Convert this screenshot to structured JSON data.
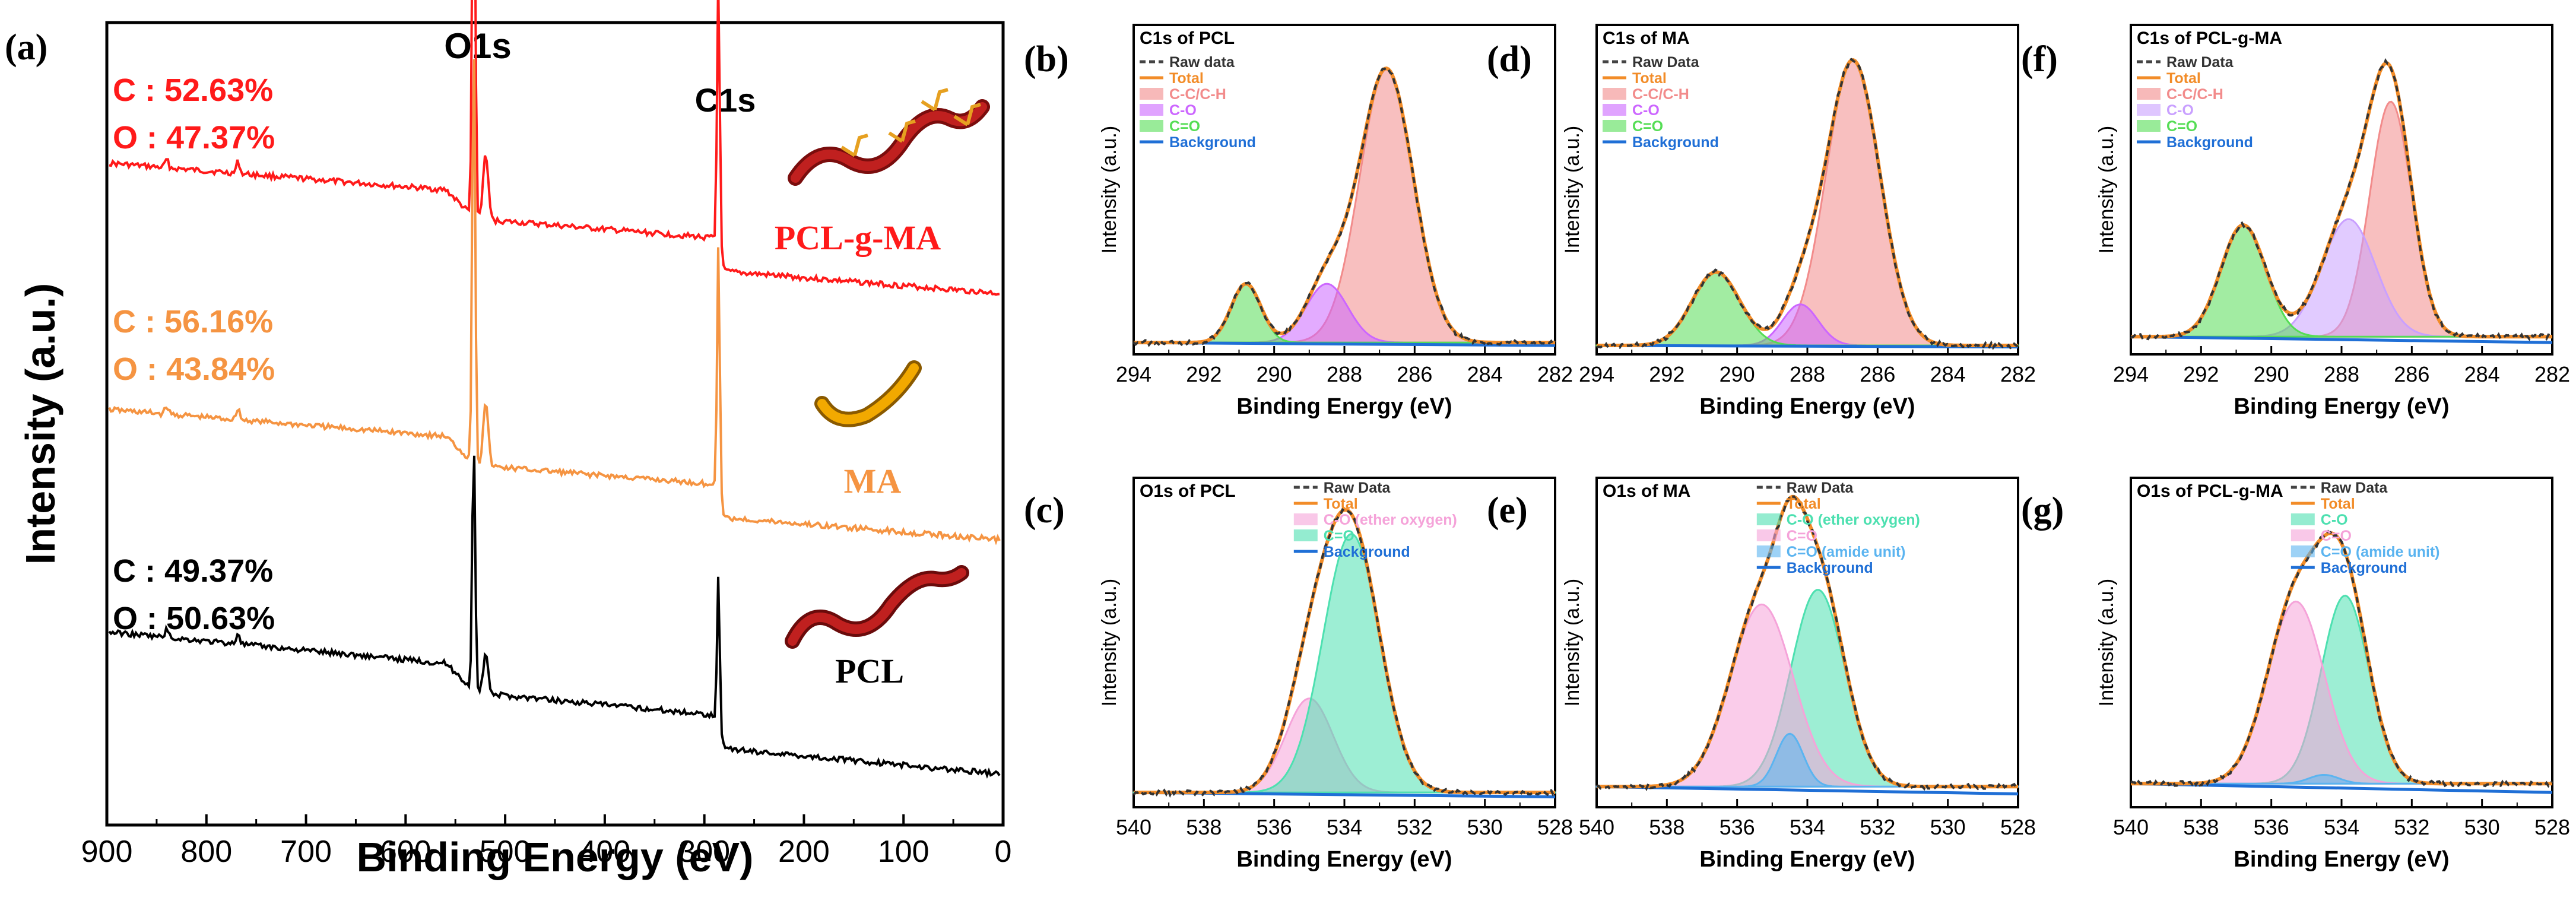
{
  "panel_a": {
    "label": "(a)",
    "xlabel": "Binding Energy (eV)",
    "ylabel": "Intensity (a.u.)",
    "xlim": [
      900,
      0
    ],
    "xticks": [
      "900",
      "800",
      "700",
      "600",
      "500",
      "400",
      "300",
      "200",
      "100",
      "0"
    ],
    "peak_o1s": "O1s",
    "peak_c1s": "C1s",
    "spectra": [
      {
        "name": "PCL-g-MA",
        "color": "#ff1a1a",
        "c": "C : 52.63%",
        "o": "O : 47.37%"
      },
      {
        "name": "MA",
        "color": "#f59442",
        "c": "C : 56.16%",
        "o": "O : 43.84%"
      },
      {
        "name": "PCL",
        "color": "#000000",
        "c": "C : 49.37%",
        "o": "O : 50.63%"
      }
    ]
  },
  "chart_data": [
    {
      "type": "line",
      "panel": "(a)",
      "title": "",
      "xlabel": "Binding Energy (eV)",
      "ylabel": "Intensity (a.u.)",
      "xlim": [
        900,
        0
      ],
      "series": [
        {
          "name": "PCL-g-MA",
          "peaks": {
            "O1s": 532,
            "C1s": 285
          }
        },
        {
          "name": "MA",
          "peaks": {
            "O1s": 532,
            "C1s": 285
          }
        },
        {
          "name": "PCL",
          "peaks": {
            "O1s": 532,
            "C1s": 285
          }
        }
      ]
    },
    {
      "type": "line",
      "panel": "(b)",
      "title": "C1s of PCL",
      "xlabel": "Binding Energy (eV)",
      "ylabel": "Intensity (a.u.)",
      "xlim": [
        294,
        282
      ],
      "series": [
        {
          "name": "C-C/C-H",
          "center": 286.8,
          "height": 0.93,
          "fwhm": 1.8
        },
        {
          "name": "C-O",
          "center": 288.5,
          "height": 0.2,
          "fwhm": 1.4
        },
        {
          "name": "C=O",
          "center": 290.8,
          "height": 0.2,
          "fwhm": 1.0
        }
      ]
    },
    {
      "type": "line",
      "panel": "(d)",
      "title": "C1s of MA",
      "xlabel": "Binding Energy (eV)",
      "ylabel": "Intensity (a.u.)",
      "xlim": [
        294,
        282
      ],
      "series": [
        {
          "name": "C-C/C-H",
          "center": 286.7,
          "height": 0.97,
          "fwhm": 1.8
        },
        {
          "name": "C-O",
          "center": 288.2,
          "height": 0.14,
          "fwhm": 1.2
        },
        {
          "name": "C=O",
          "center": 290.6,
          "height": 0.25,
          "fwhm": 1.6
        }
      ]
    },
    {
      "type": "line",
      "panel": "(f)",
      "title": "C1s of PCL-g-MA",
      "xlabel": "Binding Energy (eV)",
      "ylabel": "Intensity (a.u.)",
      "xlim": [
        294,
        282
      ],
      "series": [
        {
          "name": "C-C/C-H",
          "center": 286.6,
          "height": 0.8,
          "fwhm": 1.4
        },
        {
          "name": "C-O",
          "center": 287.8,
          "height": 0.4,
          "fwhm": 1.8
        },
        {
          "name": "C=O",
          "center": 290.8,
          "height": 0.38,
          "fwhm": 1.5
        }
      ]
    },
    {
      "type": "line",
      "panel": "(c)",
      "title": "O1s of PCL",
      "xlabel": "Binding Energy (eV)",
      "ylabel": "Intensity (a.u.)",
      "xlim": [
        540,
        528
      ],
      "series": [
        {
          "name": "C-O (ether oxygen)",
          "center": 535.0,
          "height": 0.32,
          "fwhm": 1.6
        },
        {
          "name": "C=O",
          "center": 533.8,
          "height": 0.88,
          "fwhm": 1.9
        }
      ]
    },
    {
      "type": "line",
      "panel": "(e)",
      "title": "O1s of MA",
      "xlabel": "Binding Energy (eV)",
      "ylabel": "Intensity (a.u.)",
      "xlim": [
        540,
        528
      ],
      "series": [
        {
          "name": "C-O (ether oxygen)",
          "center": 533.7,
          "height": 0.67,
          "fwhm": 1.8
        },
        {
          "name": "C=O",
          "center": 535.3,
          "height": 0.62,
          "fwhm": 2.1
        },
        {
          "name": "C=O (amide unit)",
          "center": 534.5,
          "height": 0.18,
          "fwhm": 0.9
        }
      ]
    },
    {
      "type": "line",
      "panel": "(g)",
      "title": "O1s of PCL-g-MA",
      "xlabel": "Binding Energy (eV)",
      "ylabel": "Intensity (a.u.)",
      "xlim": [
        540,
        528
      ],
      "series": [
        {
          "name": "C-O",
          "center": 533.9,
          "height": 0.64,
          "fwhm": 1.6
        },
        {
          "name": "C=O",
          "center": 535.3,
          "height": 0.62,
          "fwhm": 1.9
        },
        {
          "name": "C=O (amide unit)",
          "center": 534.5,
          "height": 0.03,
          "fwhm": 1.0
        }
      ]
    }
  ],
  "xps_panels": [
    {
      "label": "(b)",
      "title": "C1s of PCL",
      "xlim": [
        294,
        282
      ],
      "xticks": [
        "294",
        "292",
        "290",
        "288",
        "286",
        "284",
        "282"
      ],
      "xlabel": "Binding Energy (eV)",
      "ylabel": "Intensity (a.u.)",
      "legend": [
        {
          "text": "Raw data",
          "color": "#444444",
          "kind": "dash"
        },
        {
          "text": "Total",
          "color": "#f28c28",
          "kind": "line"
        },
        {
          "text": "C-C/C-H",
          "color": "#f28b8b",
          "kind": "fill"
        },
        {
          "text": "C-O",
          "color": "#cc66ff",
          "kind": "fill"
        },
        {
          "text": "C=O",
          "color": "#55dd55",
          "kind": "fill"
        },
        {
          "text": "Background",
          "color": "#1f6fd6",
          "kind": "line"
        }
      ]
    },
    {
      "label": "(d)",
      "title": "C1s of MA",
      "xlim": [
        294,
        282
      ],
      "xticks": [
        "294",
        "292",
        "290",
        "288",
        "286",
        "284",
        "282"
      ],
      "xlabel": "Binding Energy (eV)",
      "ylabel": "Intensity (a.u.)",
      "legend": [
        {
          "text": "Raw Data",
          "color": "#444444",
          "kind": "dash"
        },
        {
          "text": "Total",
          "color": "#f28c28",
          "kind": "line"
        },
        {
          "text": "C-C/C-H",
          "color": "#f28b8b",
          "kind": "fill"
        },
        {
          "text": "C-O",
          "color": "#cc66ff",
          "kind": "fill"
        },
        {
          "text": "C=O",
          "color": "#55dd55",
          "kind": "fill"
        },
        {
          "text": "Background",
          "color": "#1f6fd6",
          "kind": "line"
        }
      ]
    },
    {
      "label": "(f)",
      "title": "C1s of PCL-g-MA",
      "xlim": [
        294,
        282
      ],
      "xticks": [
        "294",
        "292",
        "290",
        "288",
        "286",
        "284",
        "282"
      ],
      "xlabel": "Binding Energy (eV)",
      "ylabel": "Intensity (a.u.)",
      "legend": [
        {
          "text": "Raw Data",
          "color": "#444444",
          "kind": "dash"
        },
        {
          "text": "Total",
          "color": "#f28c28",
          "kind": "line"
        },
        {
          "text": "C-C/C-H",
          "color": "#f28b8b",
          "kind": "fill"
        },
        {
          "text": "C-O",
          "color": "#c9a0ff",
          "kind": "fill"
        },
        {
          "text": "C=O",
          "color": "#55dd55",
          "kind": "fill"
        },
        {
          "text": "Background",
          "color": "#1f6fd6",
          "kind": "line"
        }
      ]
    },
    {
      "label": "(c)",
      "title": "O1s of PCL",
      "xlim": [
        540,
        528
      ],
      "xticks": [
        "540",
        "538",
        "536",
        "534",
        "532",
        "530",
        "528"
      ],
      "xlabel": "Binding Energy (eV)",
      "ylabel": "Intensity (a.u.)",
      "legend": [
        {
          "text": "Raw Data",
          "color": "#444444",
          "kind": "dash"
        },
        {
          "text": "Total",
          "color": "#f28c28",
          "kind": "line"
        },
        {
          "text": "C-O (ether oxygen)",
          "color": "#f5a3d9",
          "kind": "fill"
        },
        {
          "text": "C=O",
          "color": "#4de0b0",
          "kind": "fill"
        },
        {
          "text": "Background",
          "color": "#1f6fd6",
          "kind": "line"
        }
      ]
    },
    {
      "label": "(e)",
      "title": "O1s of MA",
      "xlim": [
        540,
        528
      ],
      "xticks": [
        "540",
        "538",
        "536",
        "534",
        "532",
        "530",
        "528"
      ],
      "xlabel": "Binding Energy (eV)",
      "ylabel": "Intensity (a.u.)",
      "legend": [
        {
          "text": "Raw Data",
          "color": "#444444",
          "kind": "dash"
        },
        {
          "text": "Total",
          "color": "#f28c28",
          "kind": "line"
        },
        {
          "text": "C-O (ether oxygen)",
          "color": "#4de0b0",
          "kind": "fill"
        },
        {
          "text": "C=O",
          "color": "#f5a3d9",
          "kind": "fill"
        },
        {
          "text": "C=O (amide unit)",
          "color": "#5bb4f0",
          "kind": "fill"
        },
        {
          "text": "Background",
          "color": "#1f6fd6",
          "kind": "line"
        }
      ]
    },
    {
      "label": "(g)",
      "title": "O1s of PCL-g-MA",
      "xlim": [
        540,
        528
      ],
      "xticks": [
        "540",
        "538",
        "536",
        "534",
        "532",
        "530",
        "528"
      ],
      "xlabel": "Binding Energy (eV)",
      "ylabel": "Intensity (a.u.)",
      "legend": [
        {
          "text": "Raw Data",
          "color": "#444444",
          "kind": "dash"
        },
        {
          "text": "Total",
          "color": "#f28c28",
          "kind": "line"
        },
        {
          "text": "C-O",
          "color": "#4de0b0",
          "kind": "fill"
        },
        {
          "text": "C=O",
          "color": "#f5a3d9",
          "kind": "fill"
        },
        {
          "text": "C=O (amide unit)",
          "color": "#5bb4f0",
          "kind": "fill"
        },
        {
          "text": "Background",
          "color": "#1f6fd6",
          "kind": "line"
        }
      ]
    }
  ]
}
